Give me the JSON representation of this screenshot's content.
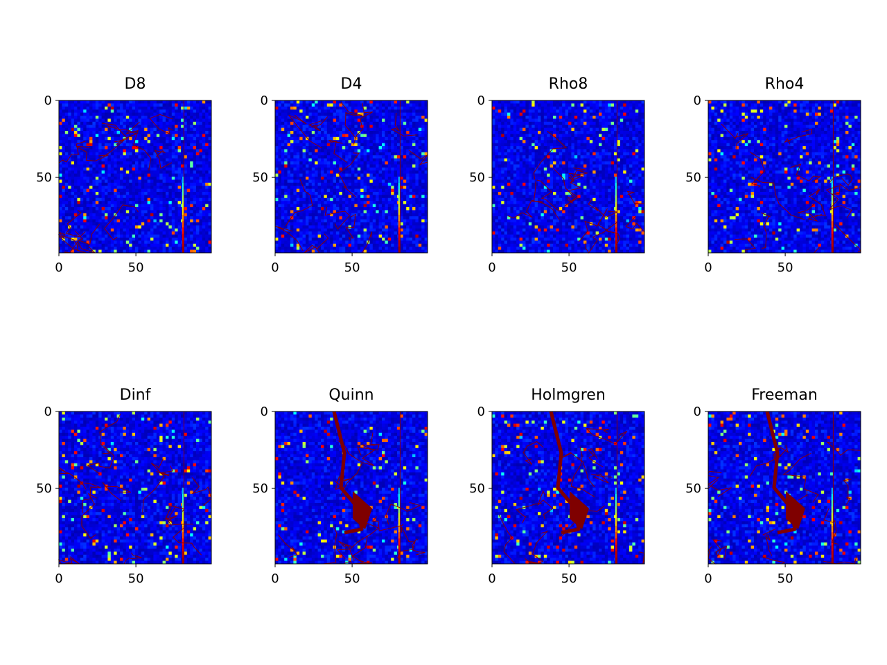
{
  "chart_data": {
    "type": "heatmap",
    "colormap": "jet",
    "colormap_stops": [
      "#00007f",
      "#0000ff",
      "#00ffff",
      "#ffff00",
      "#ff0000",
      "#7f0000"
    ],
    "grid": false,
    "panels": [
      {
        "title": "D8",
        "xlim": [
          0,
          99
        ],
        "ylim": [
          0,
          99
        ],
        "xticks": [
          0,
          50
        ],
        "yticks": [
          0,
          50
        ],
        "pattern": "single"
      },
      {
        "title": "D4",
        "xlim": [
          0,
          99
        ],
        "ylim": [
          0,
          99
        ],
        "xticks": [
          0,
          50
        ],
        "yticks": [
          0,
          50
        ],
        "pattern": "single"
      },
      {
        "title": "Rho8",
        "xlim": [
          0,
          99
        ],
        "ylim": [
          0,
          99
        ],
        "xticks": [
          0,
          50
        ],
        "yticks": [
          0,
          50
        ],
        "pattern": "single"
      },
      {
        "title": "Rho4",
        "xlim": [
          0,
          99
        ],
        "ylim": [
          0,
          99
        ],
        "xticks": [
          0,
          50
        ],
        "yticks": [
          0,
          50
        ],
        "pattern": "single"
      },
      {
        "title": "Dinf",
        "xlim": [
          0,
          99
        ],
        "ylim": [
          0,
          99
        ],
        "xticks": [
          0,
          50
        ],
        "yticks": [
          0,
          50
        ],
        "pattern": "single"
      },
      {
        "title": "Quinn",
        "xlim": [
          0,
          99
        ],
        "ylim": [
          0,
          99
        ],
        "xticks": [
          0,
          50
        ],
        "yticks": [
          0,
          50
        ],
        "pattern": "multi"
      },
      {
        "title": "Holmgren",
        "xlim": [
          0,
          99
        ],
        "ylim": [
          0,
          99
        ],
        "xticks": [
          0,
          50
        ],
        "yticks": [
          0,
          50
        ],
        "pattern": "multi"
      },
      {
        "title": "Freeman",
        "xlim": [
          0,
          99
        ],
        "ylim": [
          0,
          99
        ],
        "xticks": [
          0,
          50
        ],
        "yticks": [
          0,
          50
        ],
        "pattern": "multi"
      }
    ]
  }
}
